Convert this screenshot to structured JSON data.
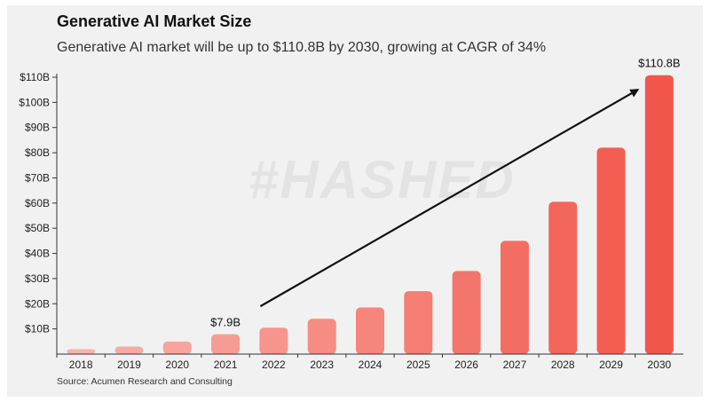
{
  "header": {
    "title": "Generative AI Market Size",
    "subtitle": "Generative AI market will be up to $110.8B by 2030, growing at CAGR of 34%"
  },
  "footer": {
    "source": "Source: Acumen Research and Consulting"
  },
  "watermark": "#HASHED",
  "colors": {
    "bar_light": "#f9b3ad",
    "bar_dark": "#f2564a",
    "arrow": "#111111",
    "background": "#f1f1f1"
  },
  "chart_data": {
    "type": "bar",
    "title": "Generative AI Market Size",
    "xlabel": "",
    "ylabel": "",
    "categories": [
      "2018",
      "2019",
      "2020",
      "2021",
      "2022",
      "2023",
      "2024",
      "2025",
      "2026",
      "2027",
      "2028",
      "2029",
      "2030"
    ],
    "values": [
      2.0,
      3.0,
      5.0,
      7.9,
      10.5,
      14.0,
      18.5,
      25.0,
      33.0,
      45.0,
      60.5,
      82.0,
      110.8
    ],
    "ylim": [
      0,
      110
    ],
    "yticks": [
      10,
      20,
      30,
      40,
      50,
      60,
      70,
      80,
      90,
      100,
      110
    ],
    "ytick_labels": [
      "$10B",
      "$20B",
      "$30B",
      "$40B",
      "$50B",
      "$60B",
      "$70B",
      "$80B",
      "$90B",
      "$100B",
      "$110B"
    ],
    "data_labels": [
      {
        "category": "2021",
        "text": "$7.9B"
      },
      {
        "category": "2030",
        "text": "$110.8B"
      }
    ],
    "annotation": {
      "type": "arrow",
      "from_category": "2022",
      "to_category": "2029",
      "meaning": "growth trend"
    }
  }
}
